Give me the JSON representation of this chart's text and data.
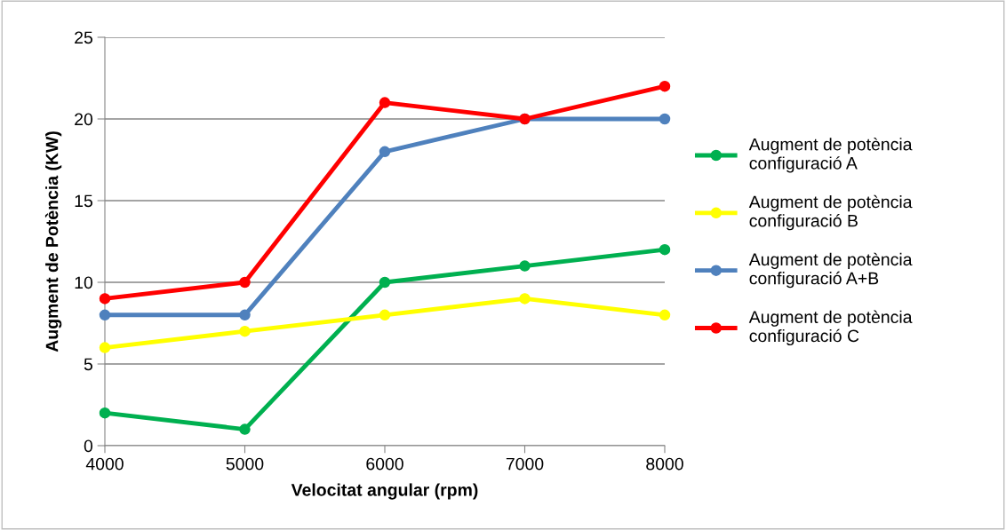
{
  "chart_data": {
    "type": "line",
    "xlabel": "Velocitat angular (rpm)",
    "ylabel": "Augment de Potència (KW)",
    "x": [
      4000,
      5000,
      6000,
      7000,
      8000
    ],
    "xlim": [
      4000,
      8000
    ],
    "xticks": [
      4000,
      5000,
      6000,
      7000,
      8000
    ],
    "ylim": [
      0,
      25
    ],
    "yticks": [
      0,
      5,
      10,
      15,
      20,
      25
    ],
    "grid": "y",
    "legend": "right",
    "marker": "circle",
    "line_style": "solid",
    "series": [
      {
        "name": "Augment de potència\nconfiguració A",
        "color": "#00b050",
        "values": [
          2,
          1,
          10,
          11,
          12
        ]
      },
      {
        "name": "Augment de potència\nconfiguració B",
        "color": "#ffff00",
        "values": [
          6,
          7,
          8,
          9,
          8
        ]
      },
      {
        "name": "Augment de potència\nconfiguració A+B",
        "color": "#4f81bd",
        "values": [
          8,
          8,
          18,
          20,
          20
        ]
      },
      {
        "name": "Augment de potència\nconfiguració C",
        "color": "#ff0000",
        "values": [
          9,
          10,
          21,
          20,
          22
        ]
      }
    ]
  }
}
